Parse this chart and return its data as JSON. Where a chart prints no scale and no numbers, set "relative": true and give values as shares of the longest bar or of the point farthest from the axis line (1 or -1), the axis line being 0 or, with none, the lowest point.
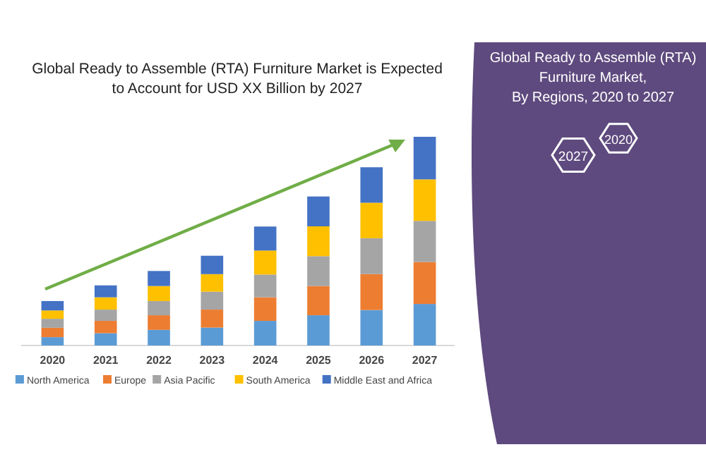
{
  "chart_data": {
    "type": "bar",
    "stacked": true,
    "relative": true,
    "legend": "bottom",
    "title": "Global Ready to Assemble (RTA) Furniture Market is Expected\nto Account for USD XX Billion by 2027",
    "annotations": [
      "Global Ready to Assemble (RTA)\nFurniture Market,\nBy Regions, 2020 to 2027",
      "2027",
      "2020"
    ],
    "categories": [
      "2020",
      "2021",
      "2022",
      "2023",
      "2024",
      "2025",
      "2026",
      "2027"
    ],
    "series": [
      {
        "name": "North America",
        "color": "#5b9bd5",
        "values": [
          0.04,
          0.059,
          0.075,
          0.086,
          0.118,
          0.145,
          0.17,
          0.199
        ]
      },
      {
        "name": "Europe",
        "color": "#ed7d31",
        "values": [
          0.045,
          0.059,
          0.07,
          0.086,
          0.113,
          0.14,
          0.172,
          0.201
        ]
      },
      {
        "name": "Asia Pacific",
        "color": "#a5a5a5",
        "values": [
          0.043,
          0.054,
          0.068,
          0.086,
          0.109,
          0.143,
          0.172,
          0.197
        ]
      },
      {
        "name": "South America",
        "color": "#ffc000",
        "values": [
          0.04,
          0.059,
          0.072,
          0.084,
          0.115,
          0.143,
          0.17,
          0.199
        ]
      },
      {
        "name": "Middle East and Africa",
        "color": "#4472c4",
        "values": [
          0.045,
          0.057,
          0.072,
          0.088,
          0.115,
          0.143,
          0.17,
          0.204
        ]
      }
    ]
  }
}
